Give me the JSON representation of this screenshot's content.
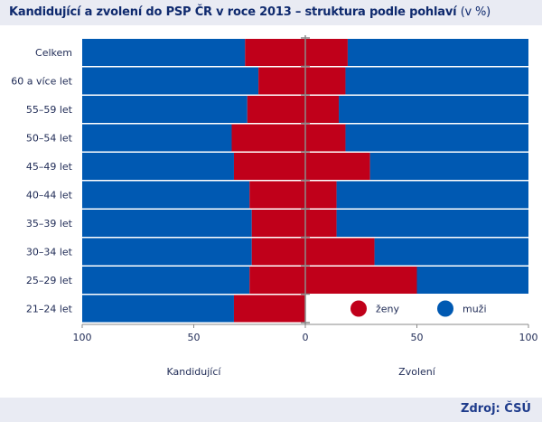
{
  "title": "Kandidující a zvolení do PSP ČR v roce 2013 – struktura podle pohlaví",
  "title_unit": "(v %)",
  "source": "Zdroj: ČSÚ",
  "colors": {
    "women": "#c0001a",
    "men": "#0059b2",
    "text": "#0f2a6e",
    "band": "#e9ebf3"
  },
  "chart_data": {
    "type": "bar",
    "orientation": "horizontal",
    "layout": "population-pyramid",
    "categories": [
      "Celkem",
      "60 a více let",
      "55–59 let",
      "50–54 let",
      "45–49 let",
      "40–44 let",
      "35–39 let",
      "30–34 let",
      "25–29 let",
      "21–24 let"
    ],
    "left_panel": {
      "label": "Kandidující",
      "series": [
        {
          "name": "ženy",
          "values": [
            27,
            21,
            26,
            33,
            32,
            25,
            24,
            24,
            25,
            32
          ]
        },
        {
          "name": "muži",
          "values": [
            73,
            79,
            74,
            67,
            68,
            75,
            76,
            76,
            75,
            68
          ]
        }
      ]
    },
    "right_panel": {
      "label": "Zvolení",
      "series": [
        {
          "name": "ženy",
          "values": [
            19,
            18,
            15,
            18,
            29,
            14,
            14,
            31,
            50,
            0
          ]
        },
        {
          "name": "muži",
          "values": [
            81,
            82,
            85,
            82,
            71,
            86,
            86,
            69,
            50,
            0
          ]
        }
      ]
    },
    "x_ticks": [
      "100",
      "50",
      "0",
      "50",
      "100"
    ],
    "xlim": [
      0,
      100
    ],
    "legend": [
      {
        "name": "ženy",
        "color": "#c0001a"
      },
      {
        "name": "muži",
        "color": "#0059b2"
      }
    ],
    "legend_position": "bottom-right"
  }
}
